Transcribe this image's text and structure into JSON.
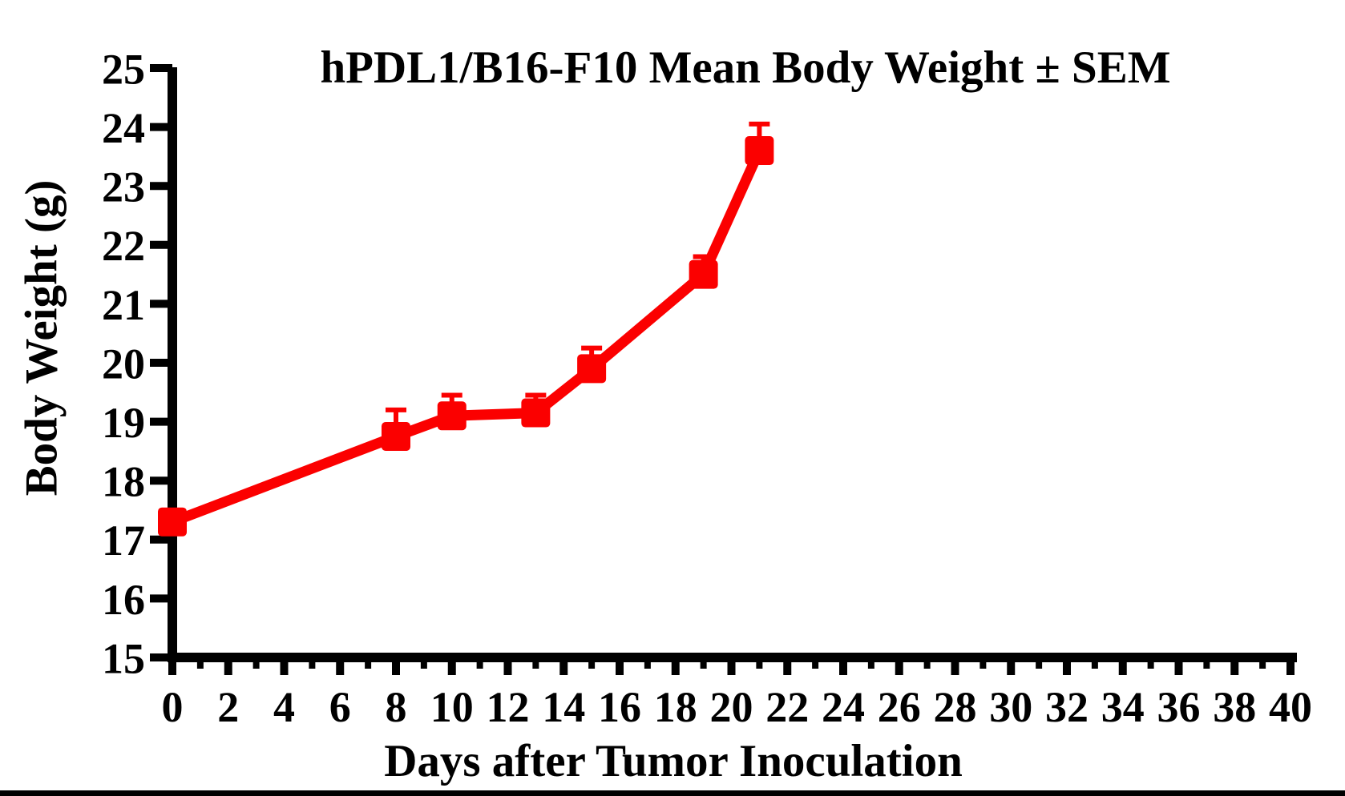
{
  "chart_data": {
    "type": "line",
    "title": "hPDL1/B16-F10 Mean Body Weight ± SEM",
    "xlabel": "Days after Tumor Inoculation",
    "ylabel": "Body Weight (g)",
    "x": [
      0,
      8,
      10,
      13,
      15,
      19,
      21
    ],
    "series": [
      {
        "name": "hPDL1/B16-F10",
        "values": [
          17.3,
          18.75,
          19.1,
          19.15,
          19.9,
          21.5,
          23.6
        ],
        "sem": [
          0,
          0.45,
          0.35,
          0.3,
          0.35,
          0.3,
          0.45
        ],
        "color": "#fb0000",
        "marker": "square"
      }
    ],
    "error_bars": "upper_only",
    "xlim": [
      0,
      40
    ],
    "ylim": [
      15,
      25
    ],
    "x_ticks": [
      0,
      2,
      4,
      6,
      8,
      10,
      12,
      14,
      16,
      18,
      20,
      22,
      24,
      26,
      28,
      30,
      32,
      34,
      36,
      38,
      40
    ],
    "x_minor_ticks": [
      1,
      3,
      5,
      7,
      9,
      11,
      13,
      15,
      17,
      19,
      21,
      23,
      25,
      27,
      29,
      31,
      33,
      35,
      37,
      39
    ],
    "y_ticks": [
      15,
      16,
      17,
      18,
      19,
      20,
      21,
      22,
      23,
      24,
      25
    ],
    "grid": false,
    "legend": "none",
    "axis_color": "#000000",
    "background_color": "#ffffff"
  }
}
